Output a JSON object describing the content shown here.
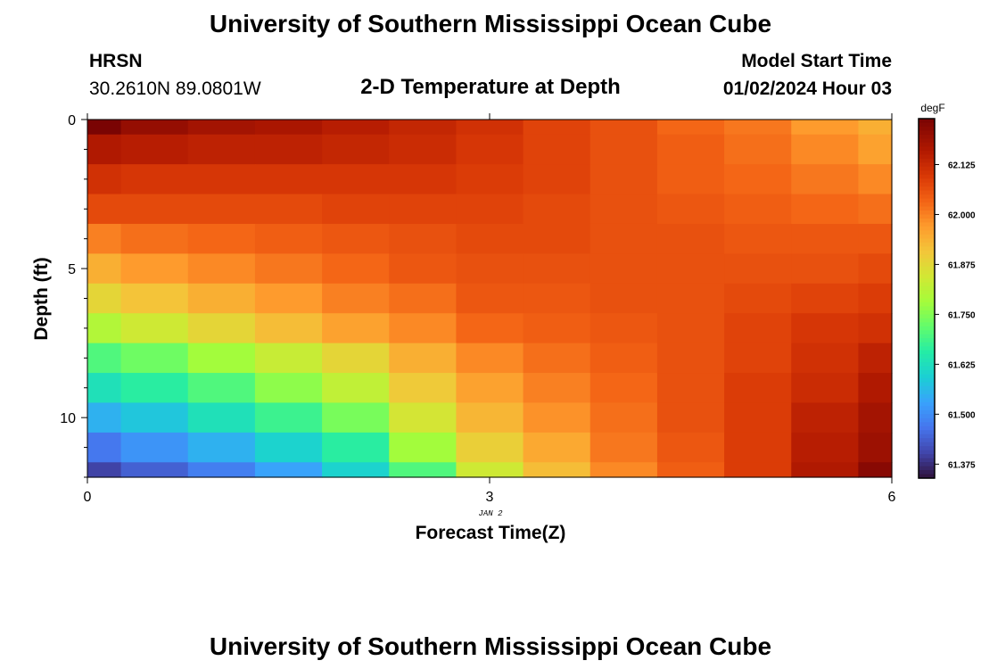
{
  "header": {
    "title": "University of Southern Mississippi Ocean Cube",
    "station": "HRSN",
    "coords": "30.2610N  89.0801W",
    "plot_title": "2-D Temperature at Depth",
    "model_label": "Model Start Time",
    "model_time": "01/02/2024 Hour 03"
  },
  "footer": {
    "title": "University of Southern Mississippi Ocean Cube"
  },
  "chart_data": {
    "type": "heatmap",
    "title": "2-D Temperature at Depth",
    "xlabel": "Forecast Time(Z)",
    "ylabel": "Depth (ft)",
    "x_date_label": "JAN 2",
    "xlim": [
      0,
      6
    ],
    "ylim": [
      0,
      12
    ],
    "x_ticks": [
      0,
      3,
      6
    ],
    "y_ticks": [
      0,
      5,
      10
    ],
    "colorbar": {
      "unit": "degF",
      "vmin": 61.34,
      "vmax": 62.24,
      "ticks": [
        61.375,
        61.5,
        61.625,
        61.75,
        61.875,
        62.0,
        62.125
      ],
      "tick_labels": [
        "61.375",
        "61.500",
        "61.625",
        "61.750",
        "61.875",
        "62.000",
        "62.125"
      ]
    },
    "x_columns": [
      0.0,
      0.25,
      0.75,
      1.25,
      1.75,
      2.25,
      2.75,
      3.25,
      3.75,
      4.25,
      4.75,
      5.25,
      5.75,
      6.0
    ],
    "y_rows": [
      0.0,
      0.5,
      1.5,
      2.5,
      3.5,
      4.5,
      5.5,
      6.5,
      7.5,
      8.5,
      9.5,
      10.5,
      11.5,
      12.0
    ],
    "values": [
      [
        62.24,
        62.2,
        62.18,
        62.17,
        62.15,
        62.13,
        62.11,
        62.08,
        62.06,
        62.03,
        62.01,
        61.97,
        61.94
      ],
      [
        62.16,
        62.15,
        62.14,
        62.14,
        62.13,
        62.12,
        62.1,
        62.08,
        62.06,
        62.04,
        62.02,
        61.99,
        61.96
      ],
      [
        62.11,
        62.1,
        62.1,
        62.1,
        62.1,
        62.1,
        62.09,
        62.08,
        62.06,
        62.04,
        62.03,
        62.01,
        61.99
      ],
      [
        62.07,
        62.07,
        62.07,
        62.07,
        62.08,
        62.08,
        62.08,
        62.07,
        62.06,
        62.05,
        62.04,
        62.03,
        62.02
      ],
      [
        62.0,
        62.02,
        62.03,
        62.04,
        62.05,
        62.06,
        62.07,
        62.07,
        62.06,
        62.06,
        62.05,
        62.05,
        62.05
      ],
      [
        61.94,
        61.97,
        61.99,
        62.01,
        62.03,
        62.05,
        62.06,
        62.06,
        62.06,
        62.06,
        62.06,
        62.06,
        62.07
      ],
      [
        61.88,
        61.91,
        61.94,
        61.97,
        62.0,
        62.02,
        62.05,
        62.05,
        62.06,
        62.06,
        62.07,
        62.08,
        62.09
      ],
      [
        61.8,
        61.84,
        61.88,
        61.92,
        61.96,
        61.99,
        62.03,
        62.04,
        62.05,
        62.06,
        62.08,
        62.1,
        62.11
      ],
      [
        61.7,
        61.73,
        61.78,
        61.83,
        61.88,
        61.94,
        61.99,
        62.02,
        62.04,
        62.06,
        62.08,
        62.11,
        62.14
      ],
      [
        61.63,
        61.66,
        61.7,
        61.76,
        61.82,
        61.9,
        61.96,
        62.0,
        62.03,
        62.06,
        62.09,
        62.12,
        62.16
      ],
      [
        61.55,
        61.58,
        61.63,
        61.68,
        61.74,
        61.85,
        61.93,
        61.98,
        62.02,
        62.06,
        62.09,
        62.14,
        62.18
      ],
      [
        61.47,
        61.51,
        61.55,
        61.6,
        61.66,
        61.78,
        61.89,
        61.95,
        62.01,
        62.05,
        62.09,
        62.15,
        62.19
      ],
      [
        61.4,
        61.44,
        61.48,
        61.53,
        61.6,
        61.7,
        61.84,
        61.92,
        61.99,
        62.04,
        62.09,
        62.16,
        62.22
      ]
    ]
  }
}
